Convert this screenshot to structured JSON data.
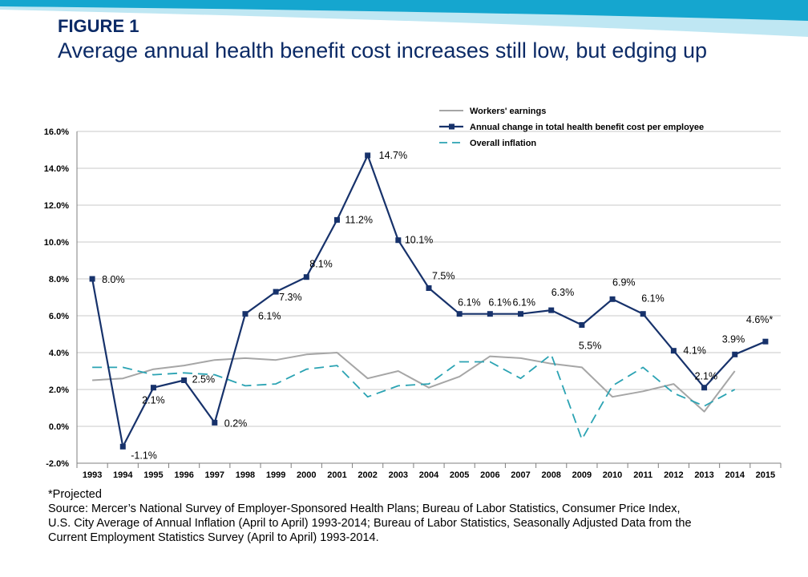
{
  "header": {
    "figure_label": "FIGURE 1",
    "title": "Average annual health benefit cost increases still low, but edging up"
  },
  "colors": {
    "earnings": "#a6a6a6",
    "cost": "#17326b",
    "inflation": "#2ba3b3",
    "band_dark": "#15a6cf",
    "band_light": "#bfe7f3"
  },
  "chart_data": {
    "type": "line",
    "x": [
      "1993",
      "1994",
      "1995",
      "1996",
      "1997",
      "1998",
      "1999",
      "2000",
      "2001",
      "2002",
      "2003",
      "2004",
      "2005",
      "2006",
      "2007",
      "2008",
      "2009",
      "2010",
      "2011",
      "2012",
      "2013",
      "2014",
      "2015"
    ],
    "ylim": [
      -2,
      16
    ],
    "yticks": [
      -2,
      0,
      2,
      4,
      6,
      8,
      10,
      12,
      14,
      16
    ],
    "ytick_labels": [
      "-2.0%",
      "0.0%",
      "2.0%",
      "4.0%",
      "6.0%",
      "8.0%",
      "10.0%",
      "12.0%",
      "14.0%",
      "16.0%"
    ],
    "grid": true,
    "legend_position": "top-right",
    "series": [
      {
        "name": "Workers' earnings",
        "style": "solid",
        "values": [
          2.5,
          2.6,
          3.1,
          3.3,
          3.6,
          3.7,
          3.6,
          3.9,
          4.0,
          2.6,
          3.0,
          2.1,
          2.7,
          3.8,
          3.7,
          3.4,
          3.2,
          1.6,
          1.9,
          2.3,
          0.8,
          3.0,
          null
        ]
      },
      {
        "name": "Annual change in total health benefit cost per employee",
        "style": "solid-markers",
        "values": [
          8.0,
          -1.1,
          2.1,
          2.5,
          0.2,
          6.1,
          7.3,
          8.1,
          11.2,
          14.7,
          10.1,
          7.5,
          6.1,
          6.1,
          6.1,
          6.3,
          5.5,
          6.9,
          6.1,
          4.1,
          2.1,
          3.9,
          4.6
        ],
        "labels": [
          "8.0%",
          "-1.1%",
          "2.1%",
          "2.5%",
          "0.2%",
          "6.1%",
          "7.3%",
          "8.1%",
          "11.2%",
          "14.7%",
          "10.1%",
          "7.5%",
          "6.1%",
          "6.1%",
          "6.1%",
          "6.3%",
          "5.5%",
          "6.9%",
          "6.1%",
          "4.1%",
          "2.1%",
          "3.9%",
          "4.6%*"
        ]
      },
      {
        "name": "Overall inflation",
        "style": "dashed",
        "values": [
          3.2,
          3.2,
          2.8,
          2.9,
          2.8,
          2.2,
          2.3,
          3.1,
          3.3,
          1.6,
          2.2,
          2.3,
          3.5,
          3.5,
          2.6,
          3.9,
          -0.7,
          2.2,
          3.2,
          1.8,
          1.1,
          2.0,
          null
        ]
      }
    ]
  },
  "footnote": {
    "projected": "*Projected",
    "source_lines": [
      "Source: Mercer’s National Survey of Employer-Sponsored Health Plans; Bureau of Labor Statistics, Consumer Price Index,",
      "U.S. City Average of Annual Inflation  (April to April) 1993-2014; Bureau of Labor Statistics, Seasonally Adjusted Data from the",
      "Current Employment Statistics Survey (April to April) 1993-2014."
    ]
  }
}
